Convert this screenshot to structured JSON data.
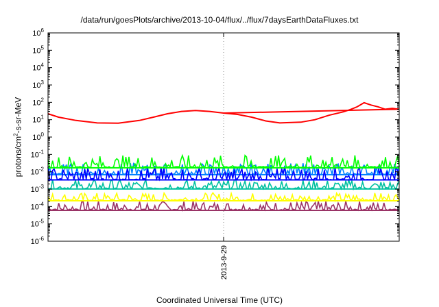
{
  "chart_data": {
    "type": "line",
    "title": "/data/run/goesPlots/archive/2013-10-04/flux/../flux/7daysEarthDataFluxes.txt",
    "xlabel": "Coordinated Universal Time (UTC)",
    "ylabel": "protons/cm²-s-sr-MeV",
    "yscale": "log",
    "ylim": [
      1e-06,
      1000000.0
    ],
    "y_ticks": [
      "10^-6",
      "10^-5",
      "10^-4",
      "10^-3",
      "10^-2",
      "10^-1",
      "10^0",
      "10^1",
      "10^2",
      "10^3",
      "10^4",
      "10^5",
      "10^6"
    ],
    "x_ticks": [
      "2013-9-29"
    ],
    "x_tick_position": 0.5,
    "grid": "dotted",
    "legend": "none",
    "series": [
      {
        "color": "#ff0000",
        "x": [
          0,
          0.03,
          0.08,
          0.14,
          0.2,
          0.26,
          0.3,
          0.34,
          0.38,
          0.42,
          0.46,
          0.5,
          0.54,
          0.58,
          0.62,
          0.66,
          0.72,
          0.76,
          0.8,
          0.84,
          0.86,
          0.88,
          0.9,
          0.92,
          0.94,
          0.96,
          0.98,
          1.0
        ],
        "y": [
          22,
          14,
          9,
          6.5,
          6.3,
          9,
          14,
          22,
          30,
          34,
          30,
          24,
          20,
          14,
          8.5,
          6.5,
          7.2,
          10,
          18,
          28,
          38,
          55,
          95,
          70,
          55,
          40,
          45,
          40
        ],
        "note_segment": {
          "x": [
            0.5,
            1.0
          ],
          "y": [
            24,
            40
          ]
        }
      },
      {
        "color": "#00ff00",
        "base": 0.02,
        "spread": 4.5
      },
      {
        "color": "#0000ff",
        "base": 0.004,
        "spread": 5.0
      },
      {
        "color": "#0080ff",
        "base": 0.008,
        "spread": 4.0
      },
      {
        "color": "#00c0a0",
        "base": 0.0012,
        "spread": 3.0
      },
      {
        "color": "#ffff00",
        "base": 0.00025,
        "spread": 2.5
      },
      {
        "color": "#993366",
        "base": 7e-05,
        "spread": 3.0
      }
    ]
  }
}
